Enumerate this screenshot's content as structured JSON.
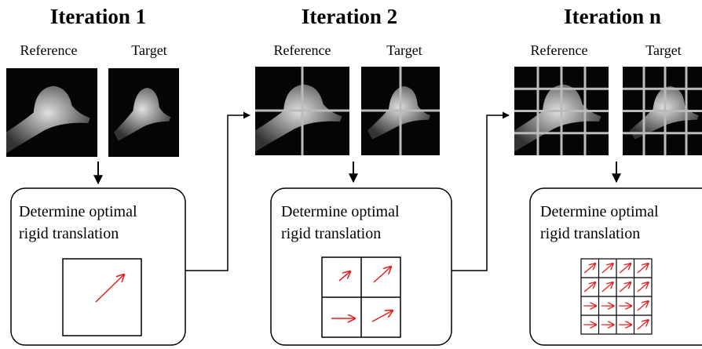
{
  "iterations": [
    {
      "title": "Iteration 1",
      "reference": "Reference",
      "target": "Target",
      "box_line1": "Determine optimal",
      "box_line2": "rigid translation"
    },
    {
      "title": "Iteration 2",
      "reference": "Reference",
      "target": "Target",
      "box_line1": "Determine optimal",
      "box_line2": "rigid translation"
    },
    {
      "title": "Iteration n",
      "reference": "Reference",
      "target": "Target",
      "box_line1": "Determine optimal",
      "box_line2": "rigid translation"
    }
  ]
}
